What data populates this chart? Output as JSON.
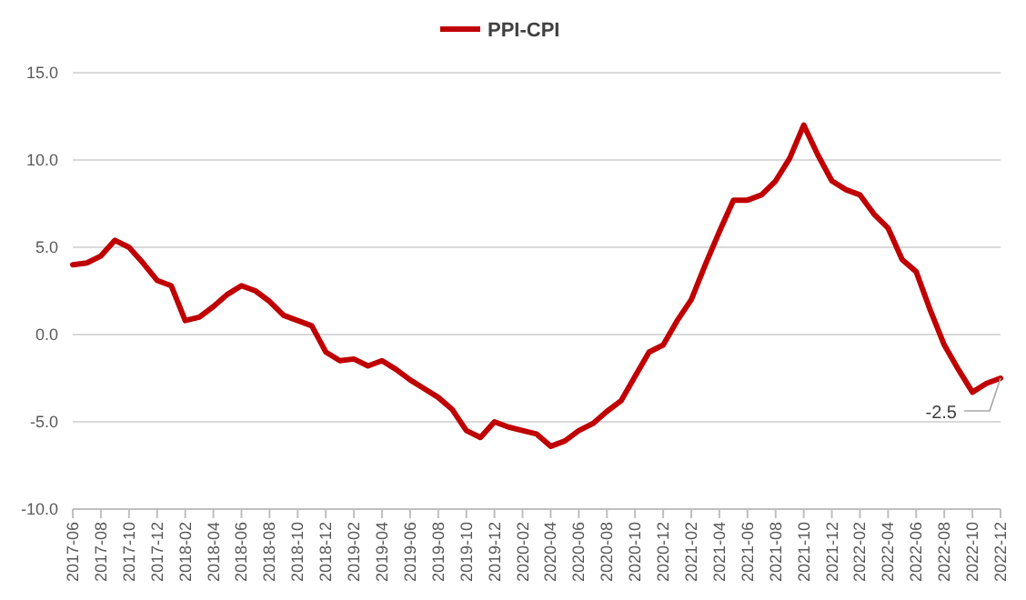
{
  "chart_data": {
    "type": "line",
    "categories": [
      "2017-06",
      null,
      "2017-08",
      null,
      "2017-10",
      null,
      "2017-12",
      null,
      "2018-02",
      null,
      "2018-04",
      null,
      "2018-06",
      null,
      "2018-08",
      null,
      "2018-10",
      null,
      "2018-12",
      null,
      "2019-02",
      null,
      "2019-04",
      null,
      "2019-06",
      null,
      "2019-08",
      null,
      "2019-10",
      null,
      "2019-12",
      null,
      "2020-02",
      null,
      "2020-04",
      null,
      "2020-06",
      null,
      "2020-08",
      null,
      "2020-10",
      null,
      "2020-12",
      null,
      "2021-02",
      null,
      "2021-04",
      null,
      "2021-06",
      null,
      "2021-08",
      null,
      "2021-10",
      null,
      "2021-12",
      null,
      "2022-02",
      null,
      "2022-04",
      null,
      "2022-06",
      null,
      "2022-08",
      null,
      "2022-10",
      null,
      "2022-12"
    ],
    "series": [
      {
        "name": "PPI-CPI",
        "color": "#c00000",
        "values": [
          4.0,
          4.1,
          4.5,
          5.4,
          5.0,
          4.1,
          3.1,
          2.8,
          0.8,
          1.0,
          1.6,
          2.3,
          2.8,
          2.5,
          1.9,
          1.1,
          0.8,
          0.5,
          -1.0,
          -1.5,
          -1.4,
          -1.8,
          -1.5,
          -2.0,
          -2.6,
          -3.1,
          -3.6,
          -4.3,
          -5.5,
          -5.9,
          -5.0,
          -5.3,
          -5.5,
          -5.7,
          -6.4,
          -6.1,
          -5.5,
          -5.1,
          -4.4,
          -3.8,
          -2.4,
          -1.0,
          -0.6,
          0.8,
          2.0,
          4.0,
          5.9,
          7.7,
          7.7,
          8.0,
          8.8,
          10.1,
          12.0,
          10.3,
          8.8,
          8.3,
          8.0,
          6.9,
          6.1,
          4.3,
          3.6,
          1.4,
          -0.6,
          -2.0,
          -3.3,
          -2.8,
          -2.5
        ]
      }
    ],
    "ylim": [
      -10,
      15
    ],
    "yticks": [
      {
        "value": -10,
        "label": "-10.0"
      },
      {
        "value": -5,
        "label": "-5.0"
      },
      {
        "value": 0,
        "label": "0.0"
      },
      {
        "value": 5,
        "label": "5.0"
      },
      {
        "value": 10,
        "label": "10.0"
      },
      {
        "value": 15,
        "label": "15.0"
      }
    ],
    "grid": "y",
    "legend": "top",
    "marker": "none",
    "line_style": "solid",
    "annotations": [
      {
        "text": "-2.5",
        "x": "2022-12",
        "y": -2.5
      }
    ]
  }
}
